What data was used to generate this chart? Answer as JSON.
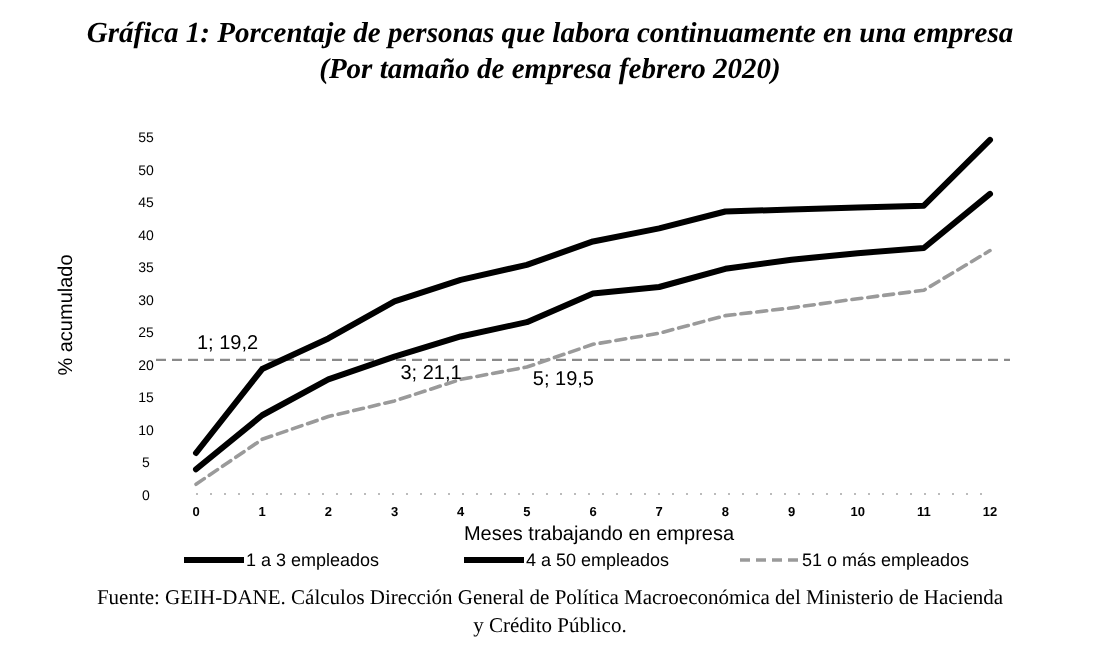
{
  "chart_data": {
    "type": "line",
    "title": "Gráfica 1: Porcentaje de personas que labora continuamente en una empresa",
    "subtitle": "(Por tamaño de empresa febrero 2020)",
    "xlabel": "Meses trabajando en empresa",
    "ylabel": "% acumulado",
    "x": [
      0,
      1,
      2,
      3,
      4,
      5,
      6,
      7,
      8,
      9,
      10,
      11,
      12
    ],
    "series": [
      {
        "name": "1 a 3 empleados",
        "color": "#000000",
        "values": [
          6.3,
          19.2,
          23.9,
          29.6,
          32.9,
          35.2,
          38.8,
          40.8,
          43.4,
          43.7,
          44,
          44.3,
          54.4
        ]
      },
      {
        "name": "4 a 50 empleados",
        "color": "#000000",
        "values": [
          3.8,
          12.1,
          17.6,
          21.1,
          24.2,
          26.4,
          30.8,
          31.8,
          34.6,
          36,
          37,
          37.8,
          46.1
        ]
      },
      {
        "name": "51 o más empleados",
        "color": "#9a9a9a",
        "line_style": "dashed",
        "values": [
          1.5,
          8.4,
          11.9,
          14.3,
          17.6,
          19.5,
          23,
          24.7,
          27.4,
          28.6,
          30,
          31.3,
          37.4
        ]
      }
    ],
    "xlim": [
      0,
      12
    ],
    "xticks": [
      0,
      1,
      2,
      3,
      4,
      5,
      6,
      7,
      8,
      9,
      10,
      11,
      12
    ],
    "ylim": [
      0,
      55
    ],
    "yticks": [
      0,
      5,
      10,
      15,
      20,
      25,
      30,
      35,
      40,
      45,
      50,
      55
    ],
    "grid": false,
    "legend": "bottom",
    "marker": "none",
    "ref_lines": [
      {
        "axis": "y",
        "value": 20.6,
        "color": "#8a8a8a",
        "line_style": "dashed"
      }
    ],
    "annotations": [
      {
        "text": "1; 19,2",
        "x": 1,
        "y": 19.2
      },
      {
        "text": "3; 21,1",
        "x": 3,
        "y": 21.1
      },
      {
        "text": "5; 19,5",
        "x": 5,
        "y": 19.5
      },
      "Fuente: GEIH-DANE. Cálculos Dirección General de Política Macroeconómica del Ministerio de Hacienda y Crédito Público."
    ]
  }
}
